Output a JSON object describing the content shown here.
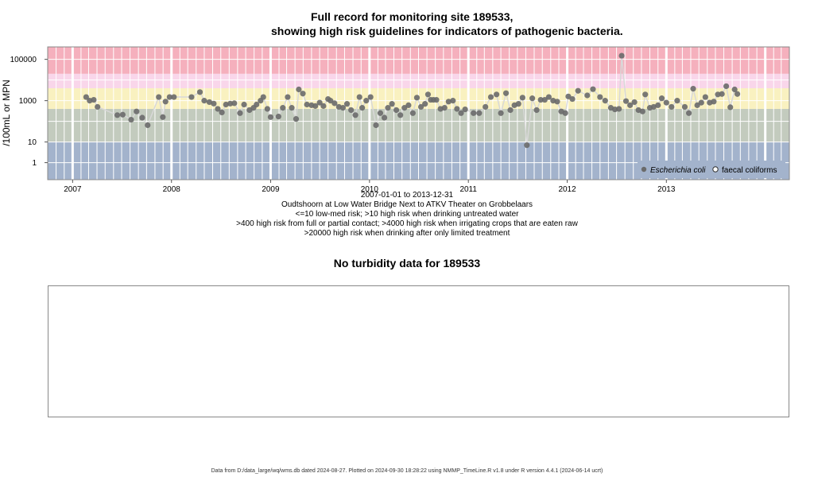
{
  "title_line1": "Full record for monitoring site 189533,",
  "title_line2": "showing high risk guidelines for indicators of pathogenic bacteria.",
  "captions": [
    "2007-01-01 to 2013-12-31",
    "Oudtshoorn at Low Water Bridge Next to ATKV Theater on Grobbelaars",
    "<=10 low-med risk; >10 high risk when drinking untreated water",
    ">400 high risk from full or partial contact; >4000 high risk when irrigating crops that are eaten raw",
    ">20000 high risk when drinking after only limited treatment"
  ],
  "turbidity_title": "No turbidity data for 189533",
  "footer": "Data from D:/data_large/wq/wms.db dated 2024-08-27. Plotted on 2024-09-30 18:28:22 using NMMP_TimeLine.R v1.8 under R version 4.4.1 (2024-06-14 ucrt)",
  "chart_data": {
    "type": "scatter",
    "ylabel": "/100mL or MPN",
    "y_scale": "log",
    "ylim": [
      0.15,
      400000
    ],
    "xlim": [
      "2006-10-01",
      "2014-03-31"
    ],
    "x_ticks": [
      "2007",
      "2008",
      "2009",
      "2010",
      "2011",
      "2012",
      "2013"
    ],
    "y_ticks": [
      "1",
      "10",
      "1000",
      "100000"
    ],
    "risk_bands": [
      {
        "from": 0.15,
        "to": 10,
        "color": "#a3b3cc"
      },
      {
        "from": 10,
        "to": 400,
        "color": "#c3cbbe"
      },
      {
        "from": 400,
        "to": 4000,
        "color": "#f9f1c0"
      },
      {
        "from": 4000,
        "to": 20000,
        "color": "#f9d6ea"
      },
      {
        "from": 20000,
        "to": 400000,
        "color": "#f5b0bd"
      }
    ],
    "colors": {
      "points": "#6a6a6a",
      "line": "#d8d8d8",
      "grid": "#ffffff"
    },
    "legend_position": "bottom-right",
    "series": [
      {
        "name": "Escherichia coli",
        "marker": "filled-circle",
        "points": [
          [
            "2007-02-20",
            1500
          ],
          [
            "2007-03-05",
            1000
          ],
          [
            "2007-03-20",
            1100
          ],
          [
            "2007-04-03",
            500
          ],
          [
            "2007-06-15",
            200
          ],
          [
            "2007-07-05",
            210
          ],
          [
            "2007-08-05",
            120
          ],
          [
            "2007-08-25",
            300
          ],
          [
            "2007-09-15",
            150
          ],
          [
            "2007-10-05",
            65
          ],
          [
            "2007-11-15",
            1500
          ],
          [
            "2007-11-30",
            160
          ],
          [
            "2007-12-10",
            900
          ],
          [
            "2007-12-25",
            1500
          ],
          [
            "2008-01-10",
            1500
          ],
          [
            "2008-03-15",
            1500
          ],
          [
            "2008-04-15",
            2600
          ],
          [
            "2008-05-01",
            1000
          ],
          [
            "2008-05-20",
            850
          ],
          [
            "2008-06-05",
            720
          ],
          [
            "2008-06-20",
            400
          ],
          [
            "2008-07-05",
            270
          ],
          [
            "2008-07-20",
            650
          ],
          [
            "2008-08-05",
            720
          ],
          [
            "2008-08-20",
            750
          ],
          [
            "2008-09-10",
            250
          ],
          [
            "2008-09-25",
            650
          ],
          [
            "2008-10-15",
            350
          ],
          [
            "2008-10-30",
            450
          ],
          [
            "2008-11-10",
            650
          ],
          [
            "2008-11-25",
            1000
          ],
          [
            "2008-12-05",
            1500
          ],
          [
            "2008-12-20",
            400
          ],
          [
            "2009-01-01",
            160
          ],
          [
            "2009-01-30",
            170
          ],
          [
            "2009-02-15",
            450
          ],
          [
            "2009-03-05",
            1500
          ],
          [
            "2009-03-20",
            450
          ],
          [
            "2009-04-05",
            130
          ],
          [
            "2009-04-15",
            3500
          ],
          [
            "2009-04-30",
            2200
          ],
          [
            "2009-05-15",
            650
          ],
          [
            "2009-06-01",
            600
          ],
          [
            "2009-06-15",
            550
          ],
          [
            "2009-07-01",
            800
          ],
          [
            "2009-07-15",
            550
          ],
          [
            "2009-08-01",
            1200
          ],
          [
            "2009-08-10",
            1000
          ],
          [
            "2009-08-25",
            750
          ],
          [
            "2009-09-10",
            500
          ],
          [
            "2009-09-25",
            450
          ],
          [
            "2009-10-10",
            700
          ],
          [
            "2009-10-25",
            350
          ],
          [
            "2009-11-10",
            200
          ],
          [
            "2009-11-25",
            1500
          ],
          [
            "2009-12-05",
            450
          ],
          [
            "2009-12-20",
            1000
          ],
          [
            "2010-01-05",
            1500
          ],
          [
            "2010-01-25",
            65
          ],
          [
            "2010-02-10",
            250
          ],
          [
            "2010-02-25",
            150
          ],
          [
            "2010-03-10",
            450
          ],
          [
            "2010-03-25",
            700
          ],
          [
            "2010-04-10",
            350
          ],
          [
            "2010-04-25",
            200
          ],
          [
            "2010-05-10",
            450
          ],
          [
            "2010-05-25",
            600
          ],
          [
            "2010-06-10",
            250
          ],
          [
            "2010-06-25",
            1400
          ],
          [
            "2010-07-10",
            500
          ],
          [
            "2010-07-25",
            700
          ],
          [
            "2010-08-05",
            2000
          ],
          [
            "2010-08-15",
            1100
          ],
          [
            "2010-08-25",
            1100
          ],
          [
            "2010-09-05",
            1100
          ],
          [
            "2010-09-20",
            400
          ],
          [
            "2010-10-05",
            450
          ],
          [
            "2010-10-20",
            900
          ],
          [
            "2010-11-05",
            1000
          ],
          [
            "2010-11-20",
            400
          ],
          [
            "2010-12-05",
            250
          ],
          [
            "2010-12-20",
            380
          ],
          [
            "2011-01-20",
            250
          ],
          [
            "2011-02-10",
            250
          ],
          [
            "2011-03-05",
            500
          ],
          [
            "2011-03-25",
            1500
          ],
          [
            "2011-04-15",
            2000
          ],
          [
            "2011-05-01",
            250
          ],
          [
            "2011-05-20",
            2300
          ],
          [
            "2011-06-05",
            350
          ],
          [
            "2011-06-20",
            600
          ],
          [
            "2011-07-05",
            700
          ],
          [
            "2011-07-20",
            1400
          ],
          [
            "2011-08-05",
            7
          ],
          [
            "2011-08-25",
            1300
          ],
          [
            "2011-09-10",
            350
          ],
          [
            "2011-09-25",
            1100
          ],
          [
            "2011-10-10",
            1100
          ],
          [
            "2011-10-25",
            1500
          ],
          [
            "2011-11-10",
            1000
          ],
          [
            "2011-11-25",
            900
          ],
          [
            "2011-12-10",
            300
          ],
          [
            "2011-12-25",
            250
          ],
          [
            "2012-01-05",
            1600
          ],
          [
            "2012-01-20",
            1200
          ],
          [
            "2012-02-10",
            3000
          ],
          [
            "2012-03-15",
            1800
          ],
          [
            "2012-04-05",
            3600
          ],
          [
            "2012-05-01",
            1500
          ],
          [
            "2012-05-20",
            1000
          ],
          [
            "2012-06-10",
            450
          ],
          [
            "2012-06-25",
            380
          ],
          [
            "2012-07-10",
            400
          ],
          [
            "2012-07-20",
            150000
          ],
          [
            "2012-08-05",
            950
          ],
          [
            "2012-08-20",
            600
          ],
          [
            "2012-09-05",
            850
          ],
          [
            "2012-09-20",
            350
          ],
          [
            "2012-10-05",
            300
          ],
          [
            "2012-10-15",
            2000
          ],
          [
            "2012-11-01",
            450
          ],
          [
            "2012-11-15",
            500
          ],
          [
            "2012-12-01",
            600
          ],
          [
            "2012-12-15",
            1300
          ],
          [
            "2013-01-01",
            800
          ],
          [
            "2013-01-20",
            500
          ],
          [
            "2013-02-10",
            1000
          ],
          [
            "2013-03-10",
            500
          ],
          [
            "2013-03-25",
            250
          ],
          [
            "2013-04-10",
            3800
          ],
          [
            "2013-04-25",
            600
          ],
          [
            "2013-05-10",
            800
          ],
          [
            "2013-05-25",
            1500
          ],
          [
            "2013-06-10",
            800
          ],
          [
            "2013-06-25",
            900
          ],
          [
            "2013-07-10",
            2000
          ],
          [
            "2013-07-25",
            2100
          ],
          [
            "2013-08-10",
            5000
          ],
          [
            "2013-08-25",
            480
          ],
          [
            "2013-09-10",
            3500
          ],
          [
            "2013-09-20",
            2100
          ]
        ]
      },
      {
        "name": "faecal coliforms",
        "marker": "open-circle",
        "points": []
      }
    ]
  }
}
